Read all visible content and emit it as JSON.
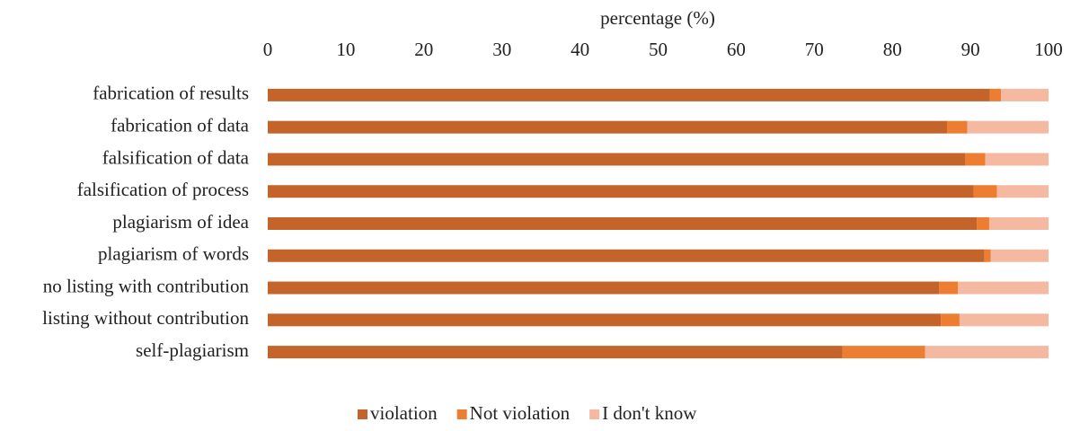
{
  "chart_data": {
    "type": "stacked-barh",
    "x_label": "percentage (%)",
    "categories": [
      "fabrication of results",
      "fabrication of data",
      "falsification of data",
      "falsification of process",
      "plagiarism of idea",
      "plagiarism of words",
      "no listing with contribution",
      "listing without contribution",
      "self-plagiarism"
    ],
    "series": [
      {
        "name": "violation",
        "color": "#c4642a",
        "values": [
          92.5,
          87.0,
          89.3,
          90.4,
          90.8,
          91.8,
          86.0,
          86.2,
          73.6
        ]
      },
      {
        "name": "Not violation",
        "color": "#ed7d31",
        "values": [
          1.4,
          2.6,
          2.6,
          3.0,
          1.6,
          0.8,
          2.4,
          2.4,
          10.6
        ]
      },
      {
        "name": "I don't know",
        "color": "#f4b9a0",
        "values": [
          6.1,
          10.4,
          8.1,
          6.6,
          7.6,
          7.4,
          11.6,
          11.4,
          15.8
        ]
      }
    ],
    "xlim": [
      0,
      100
    ],
    "xticks": [
      0,
      10,
      20,
      30,
      40,
      50,
      60,
      70,
      80,
      90,
      100
    ],
    "legend": "bottom"
  }
}
